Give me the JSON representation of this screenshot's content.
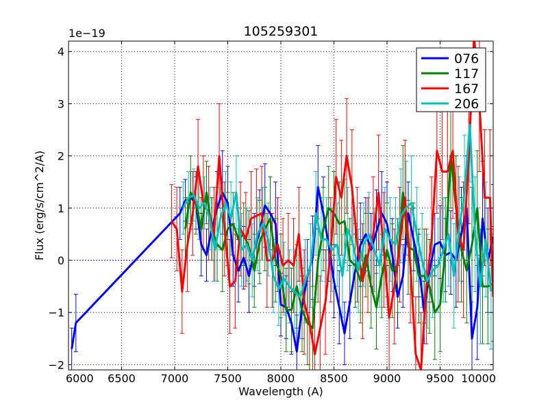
{
  "chart_data": {
    "type": "line",
    "title": "105259301",
    "xlabel": "Wavelength (A)",
    "ylabel": "Flux (erg/s/cm^2/A)",
    "offset_text": "1e−19",
    "xlim": [
      6000,
      10000
    ],
    "ylim": [
      -2.1,
      4.2
    ],
    "xticks": [
      6000,
      6500,
      7000,
      7500,
      8000,
      8500,
      9000,
      9500,
      10000
    ],
    "yticks": [
      -2,
      -1,
      0,
      1,
      2,
      3,
      4
    ],
    "grid": true,
    "legend_position": "top-right",
    "series": [
      {
        "name": "076",
        "color": "#0000ff",
        "x": [
          6030,
          6070,
          7050,
          7100,
          7150,
          7200,
          7250,
          7300,
          7350,
          7400,
          7450,
          7500,
          7550,
          7600,
          7650,
          7700,
          7750,
          7800,
          7850,
          7900,
          7950,
          8000,
          8050,
          8100,
          8150,
          8200,
          8250,
          8300,
          8350,
          8400,
          8450,
          8500,
          8550,
          8600,
          8650,
          8700,
          8750,
          8800,
          8850,
          8900,
          8950,
          9000,
          9050,
          9100,
          9150,
          9200,
          9250,
          9300,
          9350,
          9400,
          9450,
          9500,
          9550,
          9600,
          9650,
          9700,
          9750,
          9800,
          9850,
          9900,
          9950,
          10000
        ],
        "y": [
          -1.7,
          -1.2,
          0.9,
          1.15,
          1.2,
          1.1,
          0.3,
          0.1,
          0.6,
          1.0,
          1.3,
          1.1,
          0.1,
          -0.2,
          0.05,
          -0.3,
          0.2,
          0.55,
          1.05,
          0.9,
          0.7,
          -0.85,
          -0.9,
          -1.2,
          -1.75,
          -0.9,
          -0.3,
          0.05,
          1.4,
          0.9,
          0.3,
          -0.4,
          -0.9,
          -1.4,
          -0.8,
          -0.2,
          0.3,
          0.5,
          0.2,
          0.55,
          0.9,
          0.7,
          0.1,
          -0.7,
          -0.3,
          0.9,
          0.4,
          -0.1,
          -1.0,
          -0.2,
          0.3,
          0.35,
          0.1,
          0.15,
          0.0,
          0.5,
          1.0,
          -1.5,
          -0.9,
          0.8,
          0.0,
          0.45
        ],
        "err": [
          0.4,
          0.55,
          0.5,
          0.4,
          0.5,
          0.5,
          0.6,
          0.5,
          0.6,
          0.7,
          0.8,
          0.7,
          0.6,
          0.6,
          0.6,
          0.7,
          0.7,
          0.8,
          0.8,
          0.7,
          0.8,
          0.6,
          0.6,
          0.6,
          0.7,
          0.6,
          0.7,
          0.8,
          0.8,
          0.7,
          0.7,
          0.7,
          0.7,
          0.6,
          0.7,
          0.7,
          0.8,
          0.7,
          0.7,
          0.8,
          0.8,
          0.8,
          0.7,
          0.6,
          0.6,
          0.6,
          0.6,
          0.6,
          0.6,
          0.6,
          0.6,
          0.7,
          0.7,
          0.8,
          0.9,
          0.9,
          1.0,
          1.0,
          1.0,
          1.1,
          1.0,
          1.0
        ]
      },
      {
        "name": "117",
        "color": "#008000",
        "x": [
          7100,
          7150,
          7200,
          7250,
          7300,
          7350,
          7400,
          7450,
          7500,
          7550,
          7600,
          7650,
          7700,
          7750,
          7800,
          7850,
          7900,
          7950,
          8000,
          8050,
          8100,
          8150,
          8200,
          8250,
          8300,
          8350,
          8400,
          8450,
          8500,
          8550,
          8600,
          8650,
          8700,
          8750,
          8800,
          8850,
          8900,
          8950,
          9000,
          9050,
          9100,
          9150,
          9200,
          9250,
          9300,
          9350,
          9400,
          9450,
          9500,
          9550,
          9600,
          9650,
          9700,
          9750,
          9800,
          9850,
          9900,
          9950,
          10000
        ],
        "y": [
          0.6,
          1.3,
          1.1,
          0.6,
          1.3,
          0.6,
          0.3,
          0.2,
          0.6,
          0.7,
          0.4,
          0.5,
          0.25,
          -0.2,
          0.35,
          0.6,
          0.8,
          0.0,
          -0.3,
          -0.95,
          -0.95,
          -0.5,
          -0.95,
          -1.2,
          -1.3,
          0.0,
          0.6,
          1.0,
          0.9,
          0.7,
          0.75,
          0.0,
          -0.1,
          -0.4,
          0.1,
          -0.5,
          -0.9,
          -0.3,
          0.2,
          -0.2,
          -0.1,
          1.3,
          0.25,
          0.2,
          -0.3,
          -0.3,
          -0.5,
          -1.0,
          -0.85,
          0.2,
          2.0,
          1.0,
          0.2,
          -0.2,
          0.3,
          1.0,
          -0.5,
          -0.5,
          -0.45
        ],
        "err": [
          0.6,
          0.7,
          0.6,
          0.6,
          0.6,
          0.6,
          0.7,
          0.8,
          0.7,
          0.6,
          0.6,
          0.6,
          0.7,
          0.7,
          0.8,
          0.8,
          0.8,
          0.8,
          0.8,
          0.8,
          0.8,
          0.8,
          0.8,
          0.8,
          0.8,
          0.8,
          0.8,
          0.8,
          0.8,
          0.8,
          0.8,
          0.8,
          0.8,
          0.8,
          0.8,
          0.8,
          0.8,
          0.8,
          0.9,
          0.9,
          0.9,
          0.9,
          0.9,
          0.9,
          0.9,
          0.9,
          0.9,
          0.9,
          0.9,
          1.0,
          1.0,
          1.0,
          1.0,
          1.0,
          1.1,
          1.1,
          1.1,
          1.1,
          1.1
        ]
      },
      {
        "name": "167",
        "color": "#ff0000",
        "x": [
          6970,
          7020,
          7070,
          7120,
          7170,
          7220,
          7270,
          7320,
          7370,
          7420,
          7470,
          7520,
          7570,
          7620,
          7670,
          7720,
          7770,
          7820,
          7870,
          7920,
          7970,
          8020,
          8070,
          8120,
          8170,
          8220,
          8270,
          8320,
          8370,
          8420,
          8470,
          8520,
          8570,
          8620,
          8670,
          8720,
          8770,
          8820,
          8870,
          8920,
          8970,
          9020,
          9070,
          9120,
          9170,
          9220,
          9270,
          9320,
          9370,
          9420,
          9470,
          9520,
          9570,
          9620,
          9670,
          9720,
          9770,
          9820,
          9870,
          9920,
          9970,
          10000
        ],
        "y": [
          0.75,
          0.6,
          -0.6,
          0.3,
          0.9,
          1.8,
          1.1,
          0.9,
          0.5,
          2.0,
          0.6,
          -0.5,
          -0.4,
          0.6,
          0.4,
          0.8,
          0.85,
          0.9,
          0.0,
          0.0,
          0.3,
          -0.1,
          0.0,
          -0.1,
          0.5,
          -0.8,
          -1.2,
          -1.8,
          -1.3,
          -0.8,
          0.2,
          1.6,
          1.2,
          2.0,
          1.4,
          0.3,
          -0.4,
          0.1,
          0.5,
          1.3,
          0.2,
          -1.1,
          -0.5,
          0.3,
          1.2,
          -0.1,
          -1.8,
          -2.1,
          -0.5,
          0.4,
          2.1,
          1.7,
          1.7,
          2.1,
          0.5,
          0.2,
          2.0,
          4.3,
          3.0,
          1.2,
          1.2,
          -0.7
        ],
        "err": [
          0.7,
          0.8,
          0.8,
          0.9,
          0.8,
          0.9,
          0.9,
          0.9,
          0.9,
          1.0,
          0.9,
          0.9,
          0.9,
          0.9,
          0.9,
          0.9,
          0.9,
          0.9,
          0.9,
          0.9,
          0.9,
          0.9,
          0.9,
          0.9,
          0.9,
          1.0,
          1.0,
          1.0,
          1.0,
          1.0,
          1.0,
          1.1,
          1.1,
          1.1,
          1.1,
          1.1,
          1.1,
          1.1,
          1.1,
          1.1,
          1.1,
          1.1,
          1.1,
          1.1,
          1.1,
          1.1,
          1.1,
          1.1,
          1.1,
          1.2,
          1.2,
          1.3,
          1.3,
          1.3,
          1.3,
          1.3,
          1.3,
          1.3,
          1.3,
          1.3,
          1.3,
          1.3
        ]
      },
      {
        "name": "206",
        "color": "#00bfbf",
        "x": [
          7080,
          7130,
          7180,
          7230,
          7280,
          7330,
          7380,
          7430,
          7480,
          7530,
          7580,
          7630,
          7680,
          7730,
          7780,
          7830,
          7880,
          7930,
          7980,
          8030,
          8080,
          8130,
          8180,
          8230,
          8280,
          8330,
          8380,
          8430,
          8480,
          8530,
          8580,
          8630,
          8680,
          8730,
          8780,
          8830,
          8880,
          8930,
          8980,
          9030,
          9080,
          9130,
          9180,
          9230,
          9280,
          9330,
          9380,
          9430,
          9480,
          9530,
          9580,
          9630,
          9680,
          9730,
          9780,
          9830,
          9880,
          9930,
          9980
        ],
        "y": [
          1.0,
          1.2,
          1.25,
          1.0,
          1.1,
          0.8,
          0.2,
          0.8,
          1.1,
          0.8,
          1.3,
          0.2,
          0.3,
          0.0,
          0.5,
          0.7,
          0.4,
          -0.3,
          -0.55,
          -0.35,
          -0.5,
          -0.6,
          -0.7,
          -0.4,
          -0.1,
          0.9,
          0.4,
          0.4,
          0.2,
          0.3,
          -0.3,
          0.6,
          0.3,
          -0.2,
          0.3,
          0.5,
          0.2,
          -0.1,
          0.6,
          0.4,
          0.3,
          0.85,
          1.0,
          1.1,
          0.5,
          0.0,
          -0.4,
          -0.2,
          -0.1,
          0.2,
          0.5,
          -0.3,
          0.6,
          1.3,
          2.6,
          0.5,
          -0.5,
          0.4,
          -0.6
        ],
        "err": [
          0.5,
          0.5,
          0.5,
          0.6,
          0.5,
          0.6,
          0.6,
          0.6,
          0.6,
          0.7,
          0.7,
          0.7,
          0.7,
          0.7,
          0.7,
          0.7,
          0.7,
          0.7,
          0.7,
          0.7,
          0.7,
          0.8,
          0.8,
          0.8,
          0.8,
          0.8,
          0.8,
          0.8,
          0.8,
          0.8,
          0.8,
          0.8,
          0.8,
          0.8,
          0.8,
          0.8,
          0.8,
          0.8,
          0.8,
          0.8,
          0.9,
          0.9,
          0.9,
          0.9,
          0.9,
          0.9,
          0.9,
          0.9,
          0.9,
          1.0,
          1.0,
          1.0,
          1.0,
          1.1,
          1.1,
          1.1,
          1.1,
          1.1,
          1.1
        ]
      }
    ]
  }
}
